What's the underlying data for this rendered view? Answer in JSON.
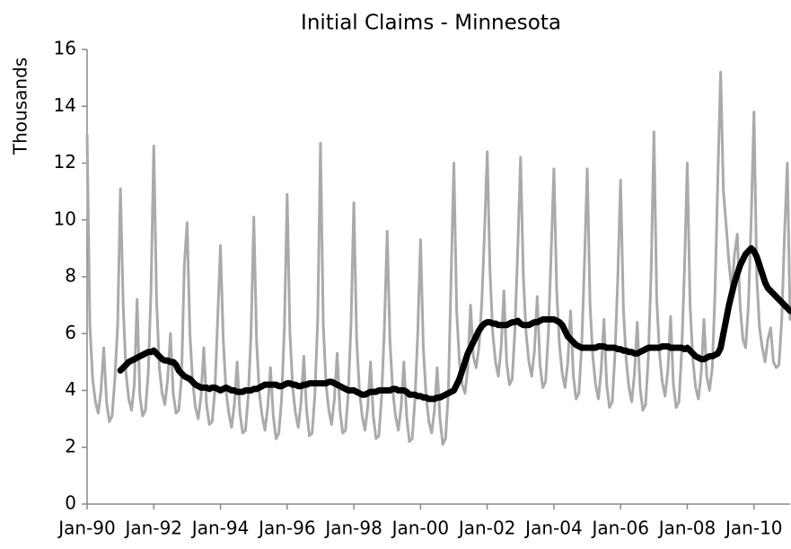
{
  "chart_data": {
    "type": "line",
    "title": "Initial Claims - Minnesota",
    "y_label": "Thousands",
    "categories": [
      "Jan-90",
      null,
      null,
      null,
      null,
      null,
      null,
      null,
      null,
      null,
      null,
      null,
      null,
      null,
      null,
      null,
      null,
      null,
      null,
      null,
      null,
      null,
      null,
      null,
      "Jan-92",
      null,
      null,
      null,
      null,
      null,
      null,
      null,
      null,
      null,
      null,
      null,
      null,
      null,
      null,
      null,
      null,
      null,
      null,
      null,
      null,
      null,
      null,
      null,
      "Jan-94",
      null,
      null,
      null,
      null,
      null,
      null,
      null,
      null,
      null,
      null,
      null,
      null,
      null,
      null,
      null,
      null,
      null,
      null,
      null,
      null,
      null,
      null,
      null,
      "Jan-96",
      null,
      null,
      null,
      null,
      null,
      null,
      null,
      null,
      null,
      null,
      null,
      null,
      null,
      null,
      null,
      null,
      null,
      null,
      null,
      null,
      null,
      null,
      null,
      "Jan-98",
      null,
      null,
      null,
      null,
      null,
      null,
      null,
      null,
      null,
      null,
      null,
      null,
      null,
      null,
      null,
      null,
      null,
      null,
      null,
      null,
      null,
      null,
      null,
      "Jan-00",
      null,
      null,
      null,
      null,
      null,
      null,
      null,
      null,
      null,
      null,
      null,
      null,
      null,
      null,
      null,
      null,
      null,
      null,
      null,
      null,
      null,
      null,
      null,
      "Jan-02",
      null,
      null,
      null,
      null,
      null,
      null,
      null,
      null,
      null,
      null,
      null,
      null,
      null,
      null,
      null,
      null,
      null,
      null,
      null,
      null,
      null,
      null,
      null,
      "Jan-04",
      null,
      null,
      null,
      null,
      null,
      null,
      null,
      null,
      null,
      null,
      null,
      null,
      null,
      null,
      null,
      null,
      null,
      null,
      null,
      null,
      null,
      null,
      null,
      "Jan-06",
      null,
      null,
      null,
      null,
      null,
      null,
      null,
      null,
      null,
      null,
      null,
      null,
      null,
      null,
      null,
      null,
      null,
      null,
      null,
      null,
      null,
      null,
      null,
      "Jan-08",
      null,
      null,
      null,
      null,
      null,
      null,
      null,
      null,
      null,
      null,
      null,
      null,
      null,
      null,
      null,
      null,
      null,
      null,
      null,
      null,
      null,
      null,
      null,
      "Jan-10",
      null,
      null,
      null,
      null,
      null,
      null,
      null,
      null,
      null,
      null,
      null,
      null,
      null
    ],
    "series": [
      {
        "color": "#aaaaaa",
        "width": 3,
        "values": [
          13.0,
          6.3,
          4.4,
          3.6,
          3.2,
          4.0,
          5.5,
          3.6,
          2.9,
          3.1,
          4.4,
          6.3,
          11.1,
          7.0,
          4.6,
          3.7,
          3.3,
          4.2,
          7.2,
          3.8,
          3.1,
          3.3,
          4.6,
          7.5,
          12.6,
          7.2,
          4.8,
          3.9,
          3.5,
          4.4,
          6.0,
          3.9,
          3.2,
          3.3,
          4.5,
          8.4,
          9.9,
          6.0,
          4.3,
          3.4,
          3.0,
          3.8,
          5.5,
          3.5,
          2.8,
          2.9,
          4.0,
          6.5,
          9.1,
          5.8,
          4.0,
          3.2,
          2.7,
          3.5,
          5.0,
          3.2,
          2.5,
          2.6,
          3.8,
          6.0,
          10.1,
          5.7,
          3.9,
          3.1,
          2.6,
          3.4,
          4.8,
          3.1,
          2.3,
          2.5,
          3.7,
          6.2,
          10.9,
          6.0,
          4.1,
          3.2,
          2.7,
          3.6,
          5.2,
          3.3,
          2.4,
          2.5,
          3.9,
          6.5,
          12.7,
          6.3,
          4.2,
          3.3,
          2.8,
          3.7,
          5.3,
          3.3,
          2.5,
          2.6,
          3.9,
          6.4,
          10.6,
          5.8,
          4.0,
          3.1,
          2.6,
          3.4,
          5.0,
          3.1,
          2.3,
          2.4,
          3.8,
          6.2,
          9.6,
          5.7,
          4.0,
          3.1,
          2.6,
          3.4,
          5.0,
          3.1,
          2.2,
          2.3,
          3.7,
          6.0,
          9.3,
          5.5,
          3.8,
          2.9,
          2.5,
          3.3,
          4.8,
          3.0,
          2.1,
          2.3,
          3.9,
          8.0,
          12.0,
          6.8,
          5.0,
          4.2,
          3.9,
          4.8,
          7.0,
          5.2,
          4.8,
          5.5,
          7.0,
          9.5,
          12.4,
          8.2,
          6.0,
          5.0,
          4.5,
          5.5,
          7.5,
          5.0,
          4.2,
          4.4,
          6.2,
          9.0,
          12.2,
          8.0,
          6.0,
          5.0,
          4.5,
          5.4,
          7.3,
          4.9,
          4.1,
          4.3,
          6.0,
          8.8,
          11.8,
          7.5,
          5.6,
          4.6,
          4.1,
          5.0,
          6.8,
          4.5,
          3.7,
          3.9,
          5.6,
          8.5,
          11.8,
          7.0,
          5.2,
          4.2,
          3.7,
          4.7,
          6.5,
          4.2,
          3.4,
          3.6,
          5.3,
          8.0,
          11.4,
          6.9,
          5.1,
          4.1,
          3.6,
          4.6,
          6.4,
          4.1,
          3.3,
          3.5,
          5.2,
          8.2,
          13.1,
          7.2,
          5.3,
          4.3,
          3.8,
          4.7,
          6.6,
          4.2,
          3.4,
          3.6,
          5.4,
          8.3,
          12.0,
          7.0,
          5.1,
          4.1,
          3.7,
          4.6,
          6.5,
          4.5,
          4.0,
          4.8,
          7.5,
          11.5,
          15.2,
          11.0,
          9.8,
          8.5,
          7.5,
          8.8,
          9.5,
          7.0,
          5.8,
          5.5,
          7.0,
          10.0,
          13.8,
          8.0,
          6.2,
          5.5,
          5.0,
          5.8,
          6.2,
          5.0,
          4.8,
          4.9,
          6.5,
          9.5,
          12.0,
          6.5
        ]
      },
      {
        "color": "#000000",
        "width": 7,
        "values": [
          null,
          null,
          null,
          null,
          null,
          null,
          null,
          null,
          null,
          null,
          null,
          null,
          4.7,
          4.8,
          4.9,
          5.0,
          5.05,
          5.1,
          5.15,
          5.2,
          5.25,
          5.3,
          5.35,
          5.35,
          5.4,
          5.3,
          5.2,
          5.1,
          5.05,
          5.05,
          5.0,
          5.0,
          4.9,
          4.7,
          4.6,
          4.5,
          4.45,
          4.4,
          4.3,
          4.2,
          4.15,
          4.1,
          4.1,
          4.1,
          4.05,
          4.1,
          4.1,
          4.05,
          4.0,
          4.05,
          4.1,
          4.05,
          4.0,
          4.0,
          3.95,
          3.95,
          3.95,
          4.0,
          4.0,
          4.0,
          4.05,
          4.05,
          4.1,
          4.15,
          4.2,
          4.2,
          4.2,
          4.2,
          4.2,
          4.15,
          4.15,
          4.2,
          4.25,
          4.25,
          4.2,
          4.2,
          4.15,
          4.15,
          4.2,
          4.2,
          4.25,
          4.25,
          4.25,
          4.25,
          4.25,
          4.25,
          4.25,
          4.3,
          4.3,
          4.25,
          4.2,
          4.15,
          4.1,
          4.05,
          4.0,
          4.0,
          4.0,
          3.95,
          3.9,
          3.85,
          3.85,
          3.9,
          3.95,
          3.95,
          3.95,
          4.0,
          4.0,
          4.0,
          4.0,
          4.0,
          4.05,
          4.05,
          4.0,
          4.0,
          4.0,
          3.95,
          3.85,
          3.85,
          3.85,
          3.8,
          3.8,
          3.75,
          3.75,
          3.7,
          3.7,
          3.7,
          3.75,
          3.75,
          3.8,
          3.85,
          3.9,
          3.95,
          4.0,
          4.2,
          4.4,
          4.7,
          5.0,
          5.3,
          5.5,
          5.7,
          5.9,
          6.1,
          6.25,
          6.35,
          6.4,
          6.4,
          6.35,
          6.35,
          6.3,
          6.3,
          6.3,
          6.3,
          6.35,
          6.4,
          6.4,
          6.45,
          6.35,
          6.3,
          6.3,
          6.3,
          6.35,
          6.4,
          6.4,
          6.45,
          6.5,
          6.5,
          6.5,
          6.5,
          6.5,
          6.45,
          6.4,
          6.3,
          6.1,
          5.9,
          5.8,
          5.7,
          5.6,
          5.55,
          5.5,
          5.5,
          5.5,
          5.5,
          5.5,
          5.5,
          5.55,
          5.55,
          5.55,
          5.5,
          5.5,
          5.5,
          5.5,
          5.45,
          5.45,
          5.4,
          5.4,
          5.35,
          5.35,
          5.3,
          5.3,
          5.35,
          5.4,
          5.45,
          5.5,
          5.5,
          5.5,
          5.5,
          5.5,
          5.55,
          5.55,
          5.55,
          5.5,
          5.5,
          5.5,
          5.5,
          5.5,
          5.45,
          5.5,
          5.4,
          5.3,
          5.2,
          5.15,
          5.1,
          5.1,
          5.15,
          5.2,
          5.2,
          5.25,
          5.3,
          5.5,
          6.0,
          6.5,
          7.0,
          7.4,
          7.8,
          8.1,
          8.4,
          8.6,
          8.8,
          8.9,
          9.0,
          8.9,
          8.7,
          8.4,
          8.1,
          7.8,
          7.6,
          7.5,
          7.4,
          7.3,
          7.2,
          7.1,
          7.0,
          6.9,
          6.8
        ]
      }
    ],
    "ylim": [
      0,
      16
    ],
    "yticks": [
      0,
      2,
      4,
      6,
      8,
      10,
      12,
      14,
      16
    ],
    "grid": false
  }
}
